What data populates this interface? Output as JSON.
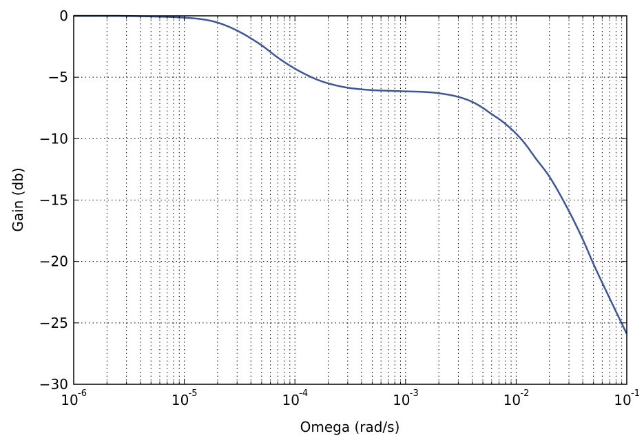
{
  "chart_data": {
    "type": "line",
    "title": "",
    "xlabel": "Omega (rad/s)",
    "ylabel": "Gain (db)",
    "xscale": "log",
    "xlim": [
      1e-06,
      0.1
    ],
    "ylim": [
      -30,
      0
    ],
    "grid": true,
    "grid_style": "dotted",
    "x_ticks": [
      {
        "value": 1e-06,
        "base": "10",
        "exp": "-6"
      },
      {
        "value": 1e-05,
        "base": "10",
        "exp": "-5"
      },
      {
        "value": 0.0001,
        "base": "10",
        "exp": "-4"
      },
      {
        "value": 0.001,
        "base": "10",
        "exp": "-3"
      },
      {
        "value": 0.01,
        "base": "10",
        "exp": "-2"
      },
      {
        "value": 0.1,
        "base": "10",
        "exp": "-1"
      }
    ],
    "y_ticks": [
      {
        "value": 0,
        "label": "0"
      },
      {
        "value": -5,
        "label": "−5"
      },
      {
        "value": -10,
        "label": "−10"
      },
      {
        "value": -15,
        "label": "−15"
      },
      {
        "value": -20,
        "label": "−20"
      },
      {
        "value": -25,
        "label": "−25"
      },
      {
        "value": -30,
        "label": "−30"
      }
    ],
    "series": [
      {
        "color": "#3a55a4",
        "x": [
          1e-06,
          2e-06,
          5e-06,
          1e-05,
          1.5e-05,
          2e-05,
          3e-05,
          5e-05,
          7e-05,
          0.0001,
          0.00015,
          0.0002,
          0.0003,
          0.0005,
          0.0007,
          0.001,
          0.0015,
          0.002,
          0.003,
          0.004,
          0.005,
          0.006,
          0.007,
          0.008,
          0.01,
          0.012,
          0.015,
          0.02,
          0.03,
          0.04,
          0.05,
          0.07,
          0.1
        ],
        "y": [
          0,
          0,
          -0.05,
          -0.15,
          -0.3,
          -0.55,
          -1.2,
          -2.4,
          -3.4,
          -4.3,
          -5.1,
          -5.5,
          -5.85,
          -6.05,
          -6.1,
          -6.15,
          -6.2,
          -6.3,
          -6.6,
          -7.0,
          -7.5,
          -8.0,
          -8.4,
          -8.8,
          -9.6,
          -10.4,
          -11.6,
          -13.1,
          -15.9,
          -18.2,
          -20.2,
          -23.0,
          -25.9
        ]
      }
    ]
  }
}
